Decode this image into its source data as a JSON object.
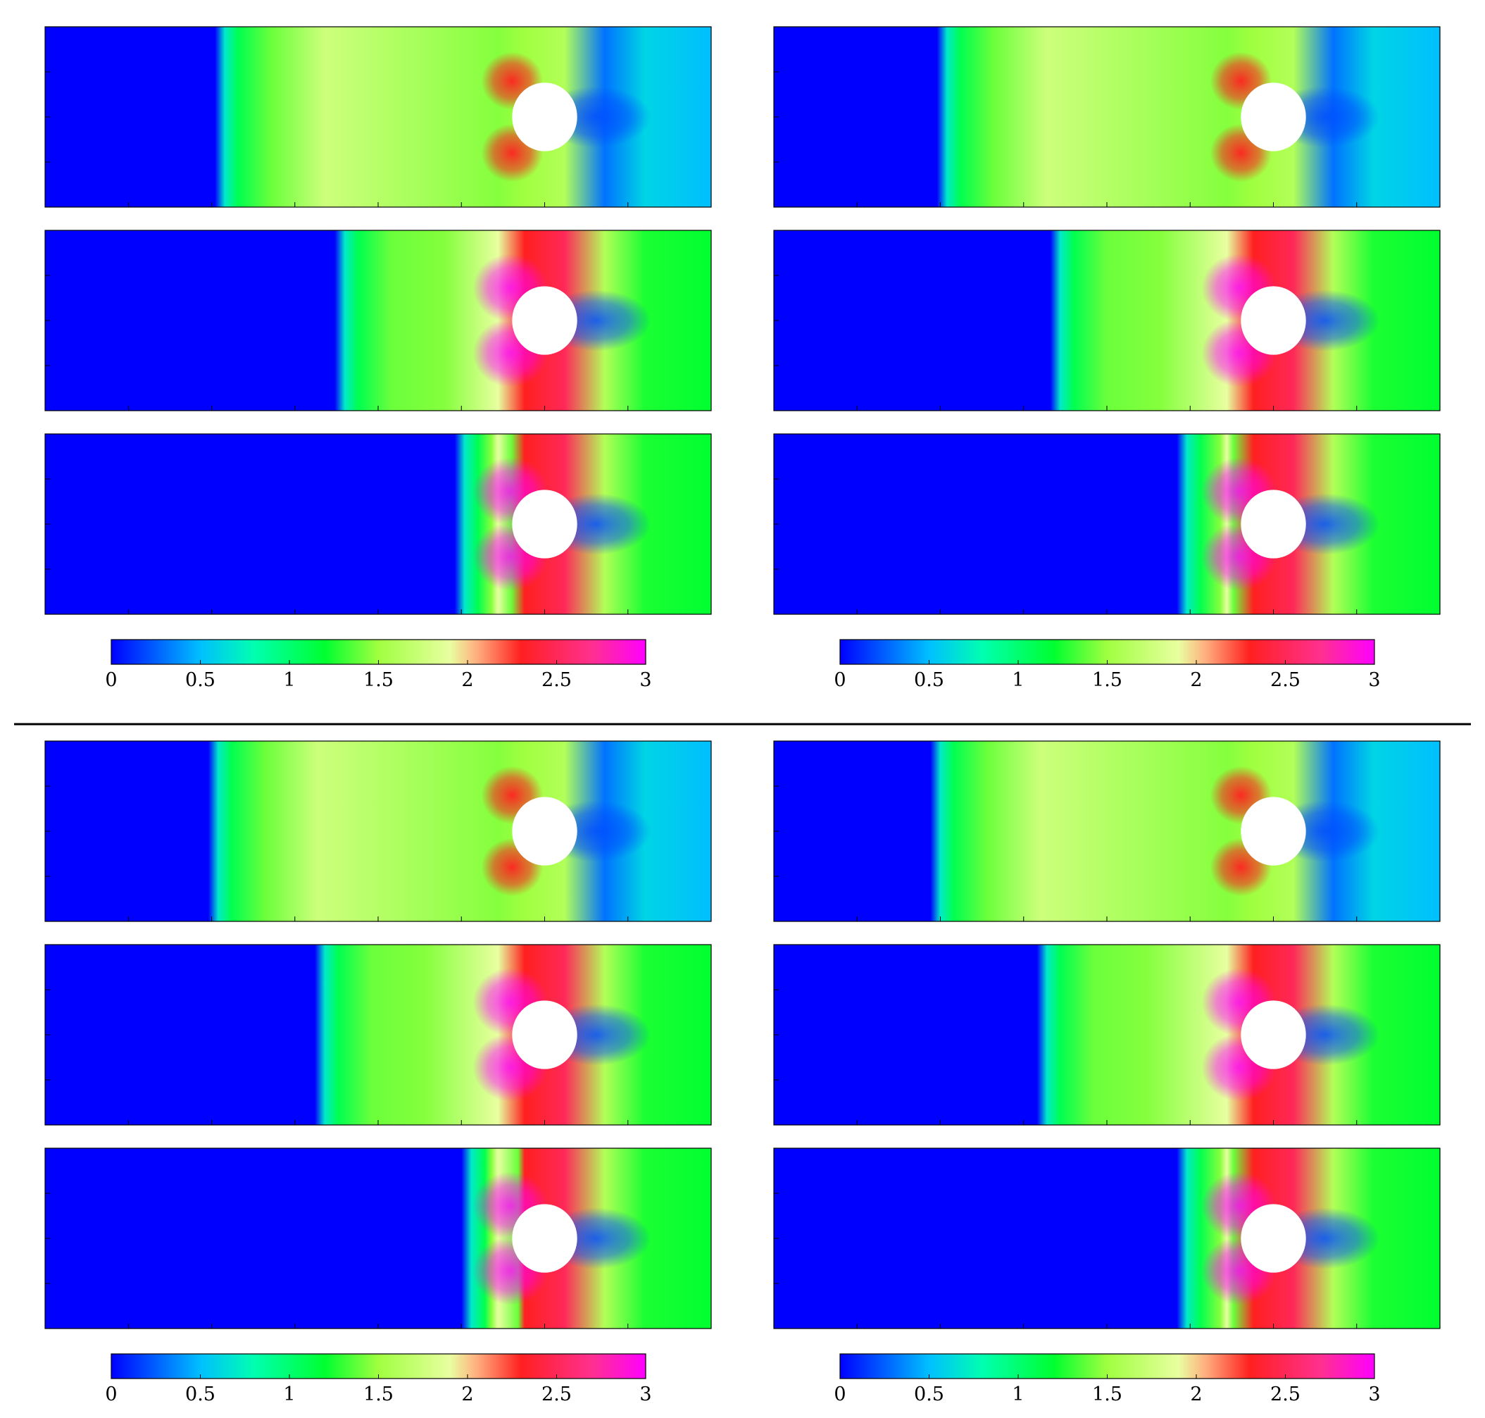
{
  "chart_data": {
    "type": "heatmap",
    "description_layout": "2 blocks (top/bottom) separated by a horizontal rule; each block has 2 columns of 3 stacked contour fields of flow past a circular cylinder in a channel, plus one colorbar per column",
    "colorbar": {
      "range": [
        0,
        3
      ],
      "ticks": [
        "0",
        "0.5",
        "1",
        "1.5",
        "2",
        "2.5",
        "3"
      ],
      "colormap_stops": [
        {
          "value": 0.0,
          "color": "#0000ff"
        },
        {
          "value": 0.5,
          "color": "#00bfff"
        },
        {
          "value": 0.8,
          "color": "#00ffb0"
        },
        {
          "value": 1.2,
          "color": "#00ff30"
        },
        {
          "value": 1.5,
          "color": "#a0ff40"
        },
        {
          "value": 1.9,
          "color": "#e8ffa0"
        },
        {
          "value": 2.05,
          "color": "#ffb080"
        },
        {
          "value": 2.3,
          "color": "#ff2020"
        },
        {
          "value": 2.7,
          "color": "#ff3090"
        },
        {
          "value": 3.0,
          "color": "#ff00ff"
        }
      ]
    },
    "blocks": [
      {
        "columns": [
          {
            "panels": [
              {
                "front_x": 0.27,
                "stage": 1
              },
              {
                "front_x": 0.45,
                "stage": 2
              },
              {
                "front_x": 0.63,
                "stage": 3
              }
            ]
          },
          {
            "panels": [
              {
                "front_x": 0.26,
                "stage": 1
              },
              {
                "front_x": 0.43,
                "stage": 2
              },
              {
                "front_x": 0.62,
                "stage": 3
              }
            ]
          }
        ]
      },
      {
        "columns": [
          {
            "panels": [
              {
                "front_x": 0.26,
                "stage": 1
              },
              {
                "front_x": 0.42,
                "stage": 2
              },
              {
                "front_x": 0.64,
                "stage": 3
              }
            ]
          },
          {
            "panels": [
              {
                "front_x": 0.25,
                "stage": 1
              },
              {
                "front_x": 0.41,
                "stage": 2
              },
              {
                "front_x": 0.62,
                "stage": 3
              }
            ]
          }
        ]
      }
    ],
    "cylinder": {
      "center_x_fraction": 0.8,
      "center_y_fraction": 0.5,
      "radius_fraction_of_height": 0.19
    },
    "x_ticks_count": 8,
    "y_ticks_count": 3
  }
}
